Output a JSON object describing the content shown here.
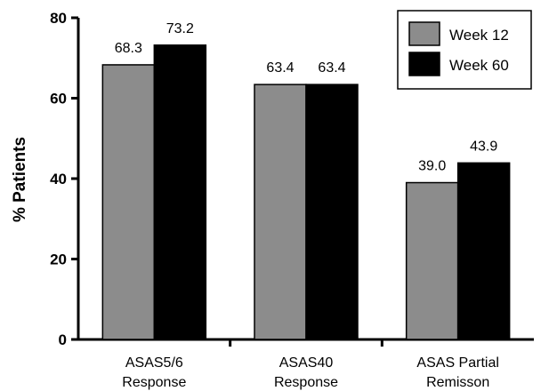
{
  "chart_data": {
    "type": "bar",
    "categories": [
      [
        "ASAS5/6",
        "Response"
      ],
      [
        "ASAS40",
        "Response"
      ],
      [
        "ASAS Partial",
        "Remisson"
      ]
    ],
    "series": [
      {
        "name": "Week 12",
        "values": [
          68.3,
          63.4,
          39.0
        ],
        "labels": [
          "68.3",
          "63.4",
          "39.0"
        ],
        "color": "#8c8c8c"
      },
      {
        "name": "Week 60",
        "values": [
          73.2,
          63.4,
          43.9
        ],
        "labels": [
          "73.2",
          "63.4",
          "43.9"
        ],
        "color": "#000000"
      }
    ],
    "ylabel": "% Patients",
    "ylim": [
      0,
      80
    ],
    "yticks": [
      "0",
      "20",
      "40",
      "60",
      "80"
    ],
    "grid": false,
    "legend_position": "top-right"
  }
}
